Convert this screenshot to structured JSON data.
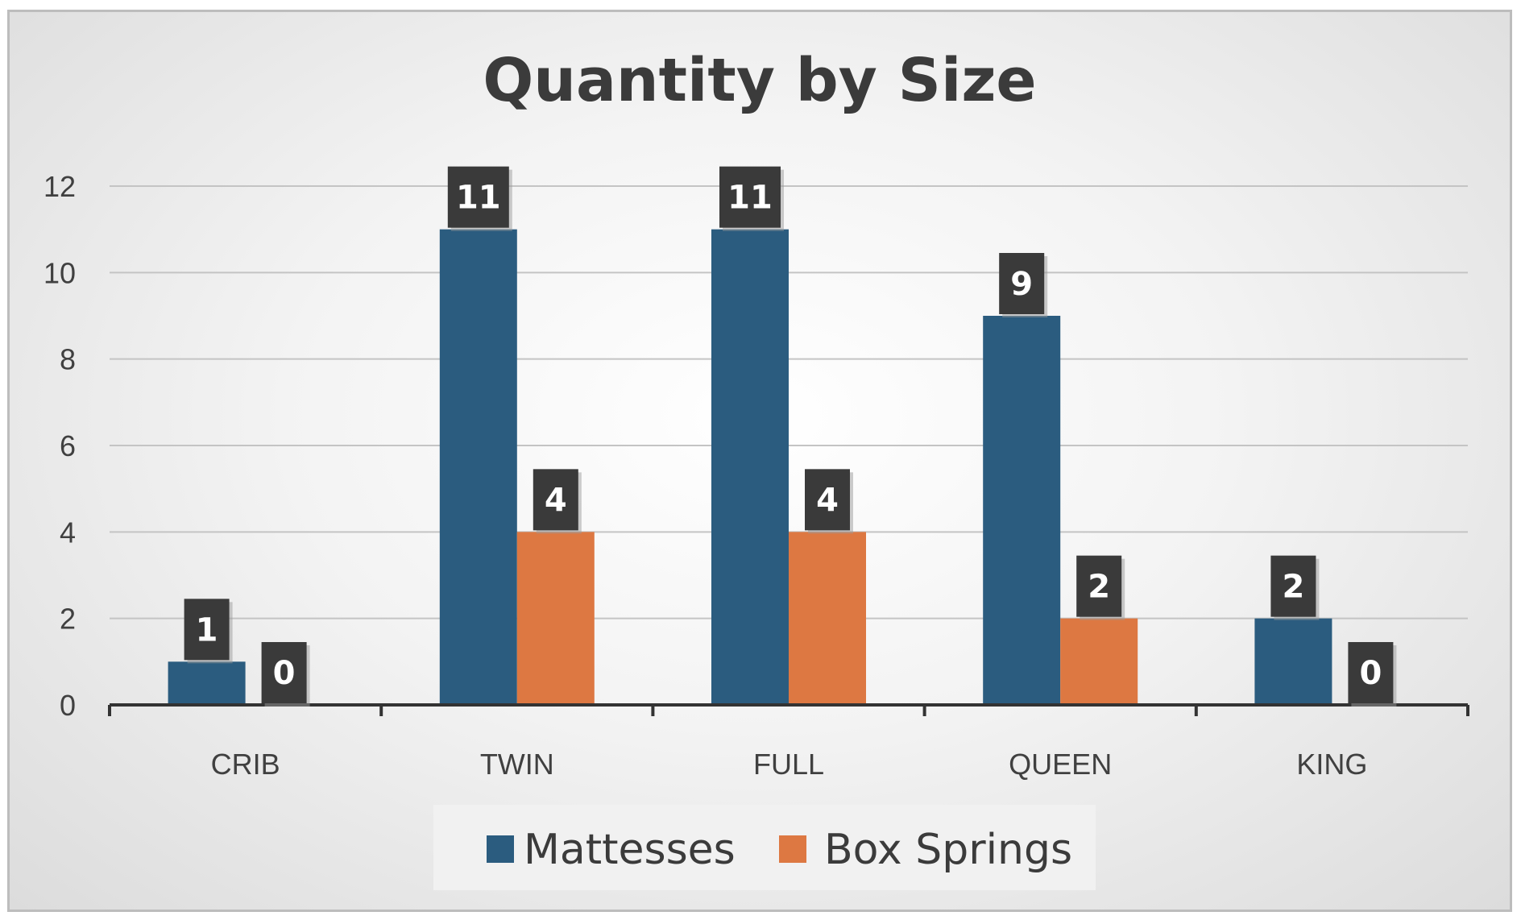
{
  "chart_data": {
    "type": "bar",
    "title": "Quantity by Size",
    "categories": [
      "CRIB",
      "TWIN",
      "FULL",
      "QUEEN",
      "KING"
    ],
    "series": [
      {
        "name": "Mattesses",
        "values": [
          1,
          11,
          11,
          9,
          2
        ],
        "color": "#2b5c7f"
      },
      {
        "name": "Box Springs",
        "values": [
          0,
          4,
          4,
          2,
          0
        ],
        "color": "#dd7842"
      }
    ],
    "ylim": [
      0,
      12
    ],
    "yticks": [
      0,
      2,
      4,
      6,
      8,
      10,
      12
    ],
    "grid": true,
    "legend": "bottom",
    "data_labels": true
  }
}
